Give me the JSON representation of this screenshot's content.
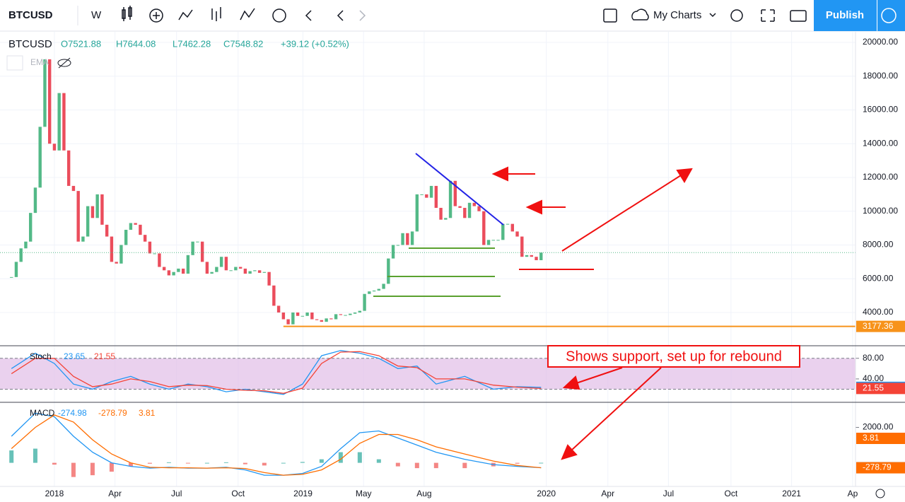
{
  "toolbar": {
    "symbol": "BTCUSD",
    "interval": "W",
    "charts": "My Charts",
    "publish": "Publish"
  },
  "legend": {
    "symbol": "BTCUSD",
    "open": "O7521.88",
    "high": "H7644.08",
    "low": "L7462.28",
    "close": "C7548.82",
    "change": "+39.12 (+0.52%)",
    "indicator": "EMA"
  },
  "annotation": "Shows support, set up for rebound",
  "chart_data": [
    {
      "type": "candlestick",
      "up_color": "#53b987",
      "down_color": "#eb4d5c",
      "values": [
        6100,
        7000,
        7800,
        8200,
        9900,
        11400,
        15000,
        19000,
        14000,
        13600,
        17000,
        13600,
        11500,
        11200,
        8200,
        8500,
        10300,
        9600,
        11000,
        9200,
        8500,
        7000,
        6900,
        8000,
        8900,
        9300,
        9200,
        8600,
        8200,
        7500,
        7500,
        6700,
        6500,
        6200,
        6400,
        6600,
        6300,
        7400,
        8200,
        8200,
        7000,
        6300,
        6400,
        6700,
        7300,
        6500,
        6500,
        6700,
        6600,
        6300,
        6450,
        6500,
        6350,
        6400,
        5600,
        4400,
        4000,
        3600,
        3300,
        4000,
        3800,
        3800,
        4000,
        3600,
        3550,
        3450,
        3650,
        3600,
        3900,
        3850,
        3850,
        3930,
        4000,
        4100,
        5100,
        5250,
        5300,
        5400,
        5700,
        7200,
        8000,
        8000,
        8700,
        8000,
        8800,
        11000,
        11000,
        10800,
        11500,
        10200,
        9500,
        9600,
        11800,
        10300,
        10200,
        9600,
        10500,
        10300,
        10000,
        8000,
        8300,
        8300,
        8300,
        9250,
        9250,
        8800,
        8500,
        7300,
        7400,
        7300,
        7100,
        7548.82
      ],
      "xlim": [
        -2.4,
        176.9
      ],
      "xticks": [
        {
          "value": 9,
          "label": "2018"
        },
        {
          "value": 21.7,
          "label": "Apr"
        },
        {
          "value": 34.6,
          "label": "Jul"
        },
        {
          "value": 47.5,
          "label": "Oct"
        },
        {
          "value": 61.1,
          "label": "2019"
        },
        {
          "value": 73.8,
          "label": "May"
        },
        {
          "value": 86.5,
          "label": "Aug"
        },
        {
          "value": 112.1,
          "label": "2020"
        },
        {
          "value": 125,
          "label": "Apr"
        },
        {
          "value": 137.7,
          "label": "Jul"
        },
        {
          "value": 150.8,
          "label": "Oct"
        },
        {
          "value": 163.5,
          "label": "2021"
        },
        {
          "value": 176.3,
          "label": "Ap"
        }
      ],
      "ylim": [
        2073,
        20628
      ],
      "yticks": [
        {
          "value": 4000,
          "label": "4000.00"
        },
        {
          "value": 6000,
          "label": "6000.00"
        },
        {
          "value": 8000,
          "label": "8000.00"
        },
        {
          "value": 10000,
          "label": "10000.00"
        },
        {
          "value": 12000,
          "label": "12000.00"
        },
        {
          "value": 14000,
          "label": "14000.00"
        },
        {
          "value": 16000,
          "label": "16000.00"
        },
        {
          "value": 18000,
          "label": "18000.00"
        },
        {
          "value": 20000,
          "label": "20000.00"
        }
      ],
      "support": 3177.36,
      "support_color": "#f7931a",
      "grid": true
    },
    {
      "type": "line",
      "title": "Stoch",
      "x": [
        0,
        5,
        9,
        13,
        17,
        21,
        25,
        29,
        33,
        37,
        41,
        45,
        49,
        53,
        57,
        61,
        65,
        69,
        73,
        77,
        81,
        85,
        89,
        95,
        101,
        106,
        111
      ],
      "series": [
        {
          "color": "#2196f3",
          "values": [
            60,
            90,
            70,
            30,
            20,
            35,
            45,
            30,
            20,
            30,
            25,
            15,
            20,
            15,
            10,
            30,
            85,
            95,
            90,
            80,
            60,
            65,
            30,
            45,
            20,
            25,
            23.65
          ]
        },
        {
          "color": "#f44336",
          "values": [
            50,
            80,
            80,
            45,
            25,
            30,
            40,
            35,
            25,
            28,
            27,
            20,
            18,
            17,
            12,
            22,
            70,
            92,
            93,
            85,
            65,
            62,
            40,
            40,
            28,
            24,
            21.55
          ]
        }
      ],
      "ylim": [
        -4,
        103
      ],
      "yticks": [
        {
          "value": 80,
          "label": "80.00"
        },
        {
          "value": 40,
          "label": "40.00"
        }
      ],
      "band": [
        20,
        80
      ],
      "band_color": "#e1bee7"
    },
    {
      "type": "line",
      "title": "MACD",
      "x": [
        0,
        5,
        9,
        13,
        17,
        21,
        25,
        29,
        33,
        37,
        41,
        45,
        49,
        53,
        57,
        61,
        65,
        69,
        73,
        77,
        81,
        85,
        89,
        95,
        101,
        106,
        111
      ],
      "series": [
        {
          "color": "#2196f3",
          "values": [
            1500,
            2800,
            2600,
            1500,
            600,
            0,
            -200,
            -300,
            -250,
            -300,
            -300,
            -250,
            -400,
            -700,
            -700,
            -600,
            -200,
            800,
            1700,
            1800,
            1400,
            1000,
            600,
            200,
            -100,
            -200,
            -274.98
          ]
        },
        {
          "color": "#ff6d00",
          "values": [
            800,
            2000,
            2700,
            2300,
            1300,
            500,
            0,
            -250,
            -280,
            -280,
            -300,
            -280,
            -320,
            -550,
            -700,
            -650,
            -400,
            200,
            1100,
            1600,
            1600,
            1300,
            900,
            500,
            100,
            -150,
            -278.79
          ]
        }
      ],
      "histogram_value": 3.81,
      "ylim": [
        -1333,
        3375
      ],
      "yticks": [
        {
          "value": 2000,
          "label": "2000.00"
        }
      ]
    }
  ]
}
